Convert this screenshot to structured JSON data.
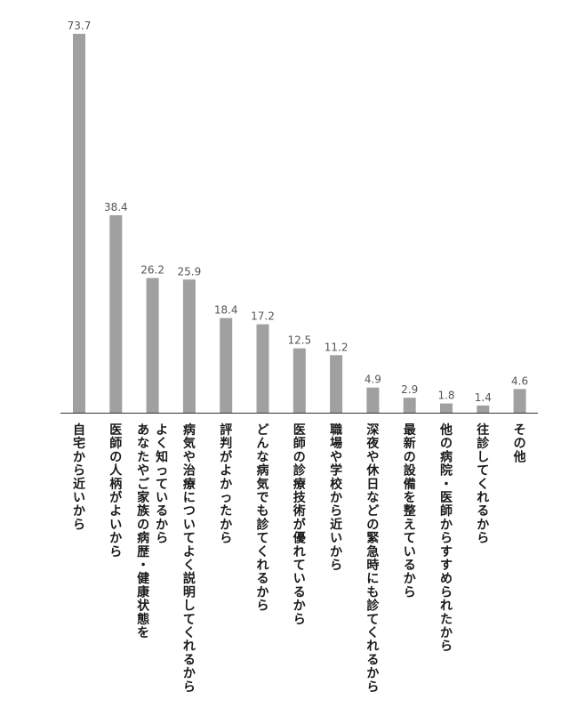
{
  "chart_data": {
    "type": "bar",
    "orientation": "vertical",
    "title": "",
    "xlabel": "",
    "ylabel": "",
    "ylim": [
      0,
      73.7
    ],
    "grid": false,
    "legend": "none",
    "bar_color": "#a0a0a0",
    "axis_color": "#333333",
    "label_color": "#1a1a1a",
    "value_color": "#555555",
    "categories": [
      [
        "自宅から近いから"
      ],
      [
        "医師の人柄がよいから"
      ],
      [
        "あなたやご家族の病歴・健康状態を",
        "よく知っているから"
      ],
      [
        "病気や治療についてよく説明してくれるから"
      ],
      [
        "評判がよかったから"
      ],
      [
        "どんな病気でも診てくれるから"
      ],
      [
        "医師の診療技術が優れているから"
      ],
      [
        "職場や学校から近いから"
      ],
      [
        "深夜や休日などの緊急時にも診てくれるから"
      ],
      [
        "最新の設備を整えているから"
      ],
      [
        "他の病院・医師からすすめられたから"
      ],
      [
        "往診してくれるから"
      ],
      [
        "その他"
      ]
    ],
    "values": [
      73.7,
      38.4,
      26.2,
      25.9,
      18.4,
      17.2,
      12.5,
      11.2,
      4.9,
      2.9,
      1.8,
      1.4,
      4.6
    ],
    "value_labels": [
      "73.7",
      "38.4",
      "26.2",
      "25.9",
      "18.4",
      "17.2",
      "12.5",
      "11.2",
      "4.9",
      "2.9",
      "1.8",
      "1.4",
      "4.6"
    ]
  }
}
